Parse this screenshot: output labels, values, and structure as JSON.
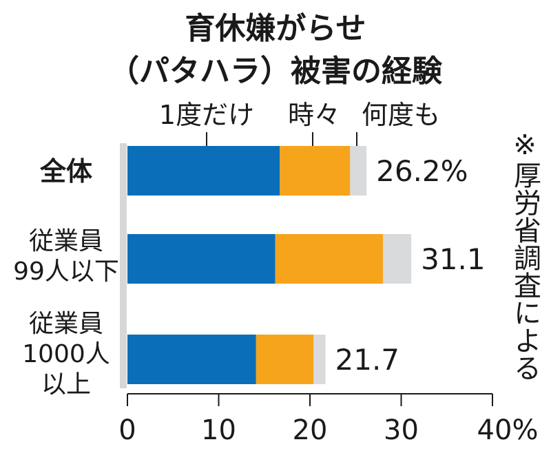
{
  "chart_data": {
    "type": "bar",
    "orientation": "horizontal",
    "stacked": true,
    "title_lines": [
      "育休嫌がらせ",
      "（パタハラ）被害の経験"
    ],
    "categories": [
      {
        "lines": [
          "全体"
        ]
      },
      {
        "lines": [
          "従業員",
          "99人以下"
        ]
      },
      {
        "lines": [
          "従業員",
          "1000人",
          "以上"
        ]
      }
    ],
    "series": [
      {
        "name": "1度だけ",
        "color": "#0a6fb8",
        "values": [
          16.7,
          16.2,
          14.1
        ]
      },
      {
        "name": "時々",
        "color": "#f6a41c",
        "values": [
          7.7,
          11.8,
          6.3
        ]
      },
      {
        "name": "何度も",
        "color": "#d9dadb",
        "values": [
          1.8,
          3.1,
          1.3
        ]
      }
    ],
    "totals": [
      26.2,
      31.1,
      21.7
    ],
    "total_labels": [
      "26.2%",
      "31.1",
      "21.7"
    ],
    "xlim": [
      0,
      40
    ],
    "x_ticks": [
      "0",
      "10",
      "20",
      "30",
      "40%"
    ],
    "source_note": "※厚労省調査による"
  }
}
